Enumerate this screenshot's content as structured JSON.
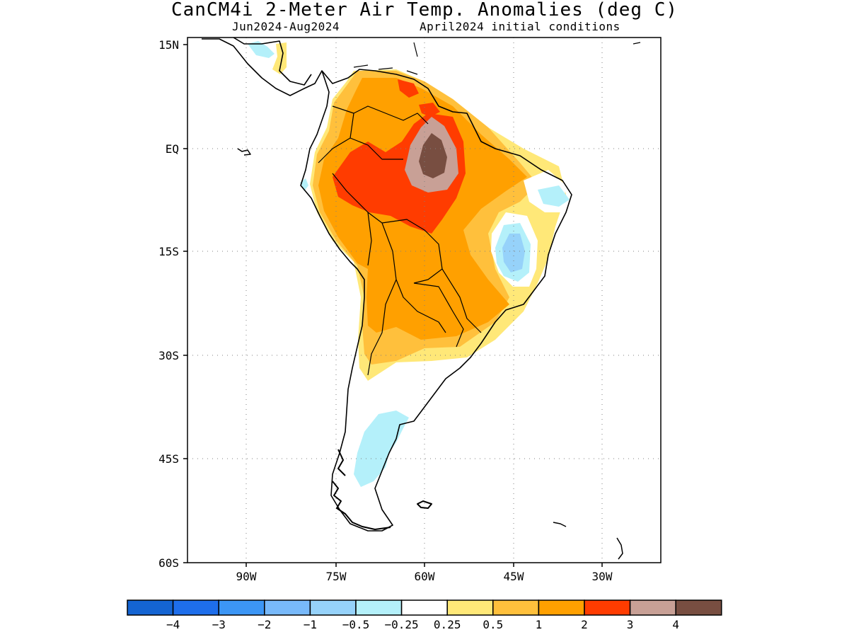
{
  "title": "CanCM4i 2-Meter Air Temp. Anomalies (deg C)",
  "subtitle_left": "Jun2024-Aug2024",
  "subtitle_right": "April2024 initial conditions",
  "axes": {
    "lat_ticks": [
      "15N",
      "EQ",
      "15S",
      "30S",
      "45S",
      "60S"
    ],
    "lon_ticks": [
      "90W",
      "75W",
      "60W",
      "45W",
      "30W"
    ]
  },
  "colorbar": {
    "labels": [
      "-4",
      "-3",
      "-2",
      "-1",
      "-0.5",
      "-0.25",
      "0.25",
      "0.5",
      "1",
      "2",
      "3",
      "4"
    ],
    "colors": [
      "#1464d2",
      "#1e6eeb",
      "#3c96f5",
      "#78b9fa",
      "#96d2fa",
      "#b4f0fa",
      "#ffffff",
      "#ffe878",
      "#ffc03c",
      "#ffa000",
      "#ff3c00",
      "#c8a096",
      "#784e41"
    ]
  },
  "map": {
    "lat_range": [
      "15N",
      "60S"
    ],
    "lon_range": [
      "100W",
      "20W"
    ],
    "grid": "dotted"
  }
}
